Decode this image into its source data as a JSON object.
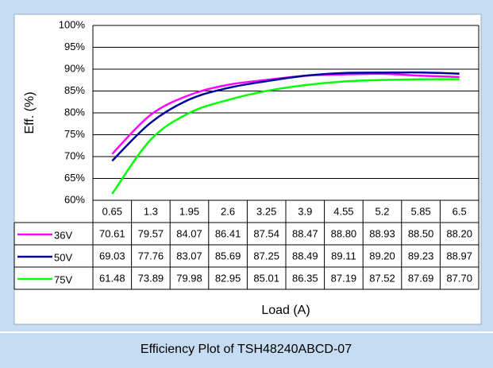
{
  "chart_data": {
    "type": "line",
    "title": "Efficiency Plot of TSH48240ABCD-07",
    "ylabel": "Eff. (%)",
    "xlabel": "Load (A)",
    "categories": [
      "0.65",
      "1.3",
      "1.95",
      "2.6",
      "3.25",
      "3.9",
      "4.55",
      "5.2",
      "5.85",
      "6.5"
    ],
    "series": [
      {
        "name": "36V",
        "color": "#ff00ff",
        "values": [
          70.61,
          79.57,
          84.07,
          86.41,
          87.54,
          88.47,
          88.8,
          88.93,
          88.5,
          88.2
        ],
        "value_labels": [
          "70.61",
          "79.57",
          "84.07",
          "86.41",
          "87.54",
          "88.47",
          "88.80",
          "88.93",
          "88.50",
          "88.20"
        ]
      },
      {
        "name": "50V",
        "color": "#0000a0",
        "values": [
          69.03,
          77.76,
          83.07,
          85.69,
          87.25,
          88.49,
          89.11,
          89.2,
          89.23,
          88.97
        ],
        "value_labels": [
          "69.03",
          "77.76",
          "83.07",
          "85.69",
          "87.25",
          "88.49",
          "89.11",
          "89.20",
          "89.23",
          "88.97"
        ]
      },
      {
        "name": "75V",
        "color": "#00ff00",
        "values": [
          61.48,
          73.89,
          79.98,
          82.95,
          85.01,
          86.35,
          87.19,
          87.52,
          87.69,
          87.7
        ],
        "value_labels": [
          "61.48",
          "73.89",
          "79.98",
          "82.95",
          "85.01",
          "86.35",
          "87.19",
          "87.52",
          "87.69",
          "87.70"
        ]
      }
    ],
    "ylim": [
      60,
      100
    ],
    "yticks": [
      {
        "value": 60,
        "label": "60%"
      },
      {
        "value": 65,
        "label": "65%"
      },
      {
        "value": 70,
        "label": "70%"
      },
      {
        "value": 75,
        "label": "75%"
      },
      {
        "value": 80,
        "label": "80%"
      },
      {
        "value": 85,
        "label": "85%"
      },
      {
        "value": 90,
        "label": "90%"
      },
      {
        "value": 95,
        "label": "95%"
      },
      {
        "value": 100,
        "label": "100%"
      }
    ],
    "grid": true
  }
}
